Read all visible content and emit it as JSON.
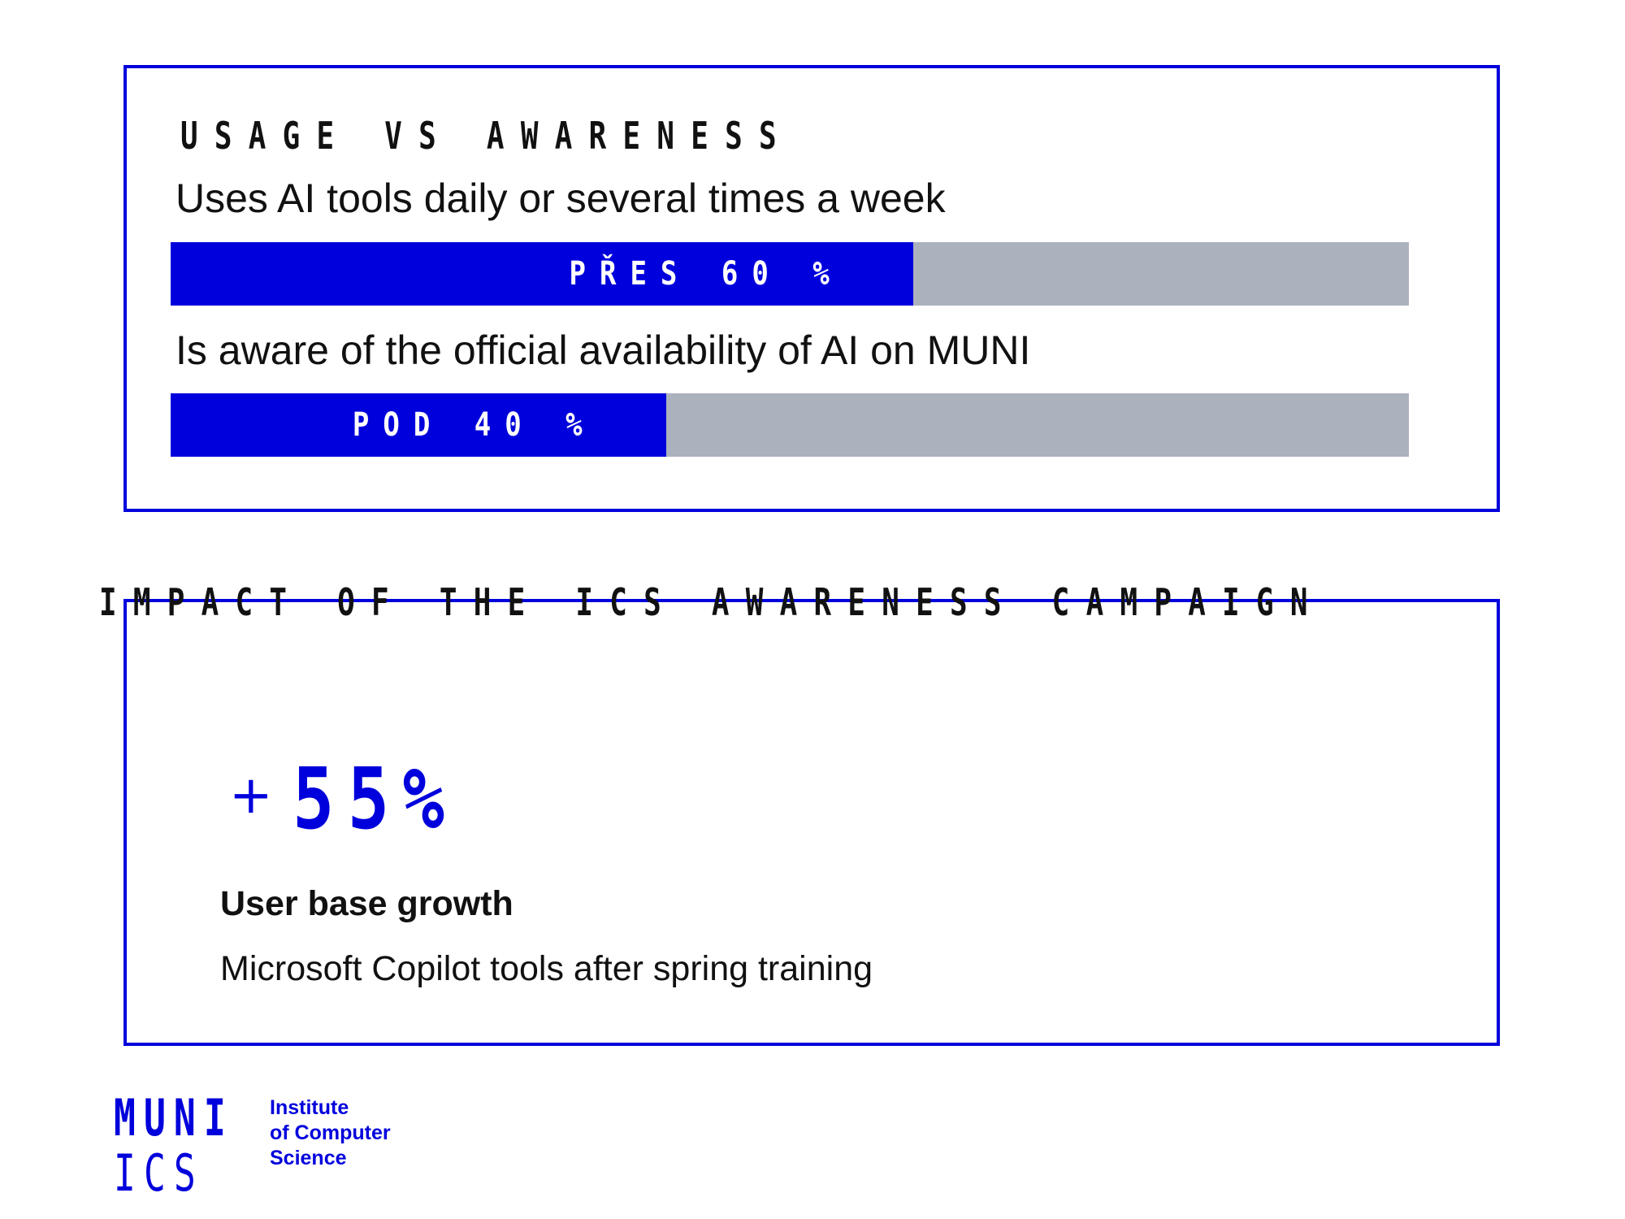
{
  "colors": {
    "accent": "#0000dc",
    "track": "#acb1be",
    "text": "#111111",
    "background": "#ffffff"
  },
  "chart_data": {
    "type": "bar",
    "orientation": "horizontal",
    "title": "USAGE VS AWARENESS",
    "categories": [
      "Uses AI tools daily or several times a week",
      "Is aware of the official availability of AI on MUNI"
    ],
    "values": [
      60,
      40
    ],
    "value_labels": [
      "PŘES 60 %",
      "POD 40 %"
    ],
    "xlim": [
      0,
      100
    ],
    "xlabel": "",
    "ylabel": "",
    "grid": false,
    "legend": "none"
  },
  "impact": {
    "heading": "IMPACT OF THE ICS AWARENESS CAMPAIGN",
    "plus": "+",
    "value": "55%",
    "subtitle": "User base growth",
    "description": "Microsoft Copilot tools after spring training"
  },
  "logo": {
    "mark_top": "MUNI",
    "mark_bottom": "ICS",
    "lines": [
      "Institute",
      "of Computer",
      "Science"
    ]
  }
}
